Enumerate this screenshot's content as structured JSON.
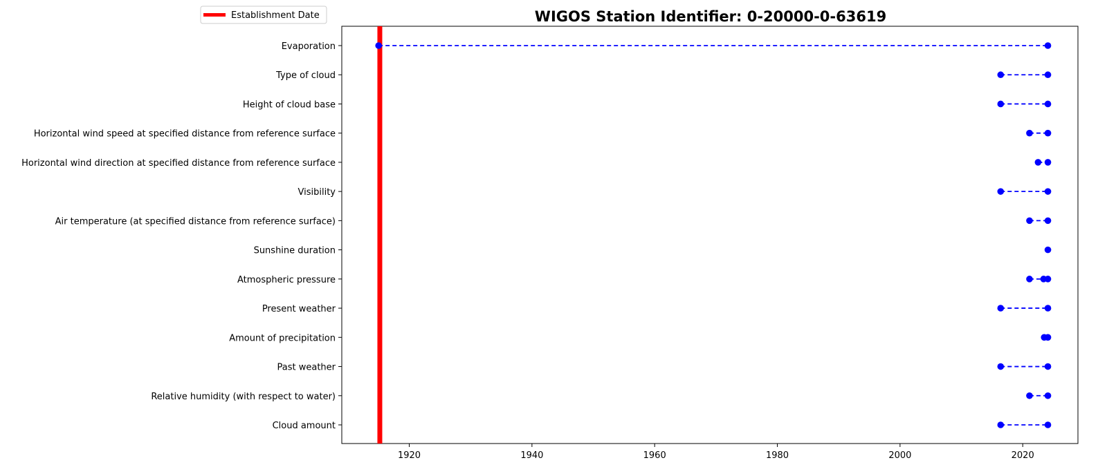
{
  "chart_data": {
    "type": "timeline",
    "title": "WIGOS Station Identifier: 0-20000-0-63619",
    "xlabel": "",
    "ylabel": "",
    "xlim": [
      1909,
      2029
    ],
    "xticks": [
      1920,
      1940,
      1960,
      1980,
      2000,
      2020
    ],
    "grid": false,
    "legend": {
      "placement": "top-left, outside plot area",
      "entries": [
        {
          "label": "Establishment Date",
          "color": "#ff0000",
          "style": "thick line"
        }
      ]
    },
    "establishment_date": 1915.2,
    "series_color": "#0000ff",
    "categories": [
      "Evaporation",
      "Type of cloud",
      "Height of cloud base",
      "Horizontal wind speed at specified distance from reference surface",
      "Horizontal wind direction at specified distance from reference surface",
      "Visibility",
      "Air temperature (at specified distance from reference surface)",
      "Sunshine duration",
      "Atmospheric pressure",
      "Present weather",
      "Amount of precipitation",
      "Past weather",
      "Relative humidity (with respect to water)",
      "Cloud amount"
    ],
    "series": [
      {
        "category": "Evaporation",
        "points": [
          1915.0,
          2024.1
        ]
      },
      {
        "category": "Type of cloud",
        "points": [
          2016.4,
          2024.1
        ]
      },
      {
        "category": "Height of cloud base",
        "points": [
          2016.4,
          2024.1
        ]
      },
      {
        "category": "Horizontal wind speed at specified distance from reference surface",
        "points": [
          2021.1,
          2024.1
        ]
      },
      {
        "category": "Horizontal wind direction at specified distance from reference surface",
        "points": [
          2022.5,
          2024.1
        ]
      },
      {
        "category": "Visibility",
        "points": [
          2016.4,
          2024.1
        ]
      },
      {
        "category": "Air temperature (at specified distance from reference surface)",
        "points": [
          2021.1,
          2024.1
        ]
      },
      {
        "category": "Sunshine duration",
        "points": [
          2024.1
        ]
      },
      {
        "category": "Atmospheric pressure",
        "points": [
          2021.1,
          2023.4,
          2024.1
        ]
      },
      {
        "category": "Present weather",
        "points": [
          2016.4,
          2024.1
        ]
      },
      {
        "category": "Amount of precipitation",
        "points": [
          2023.5,
          2024.1
        ]
      },
      {
        "category": "Past weather",
        "points": [
          2016.4,
          2024.1
        ]
      },
      {
        "category": "Relative humidity (with respect to water)",
        "points": [
          2021.1,
          2024.1
        ]
      },
      {
        "category": "Cloud amount",
        "points": [
          2016.4,
          2024.1
        ]
      }
    ]
  }
}
